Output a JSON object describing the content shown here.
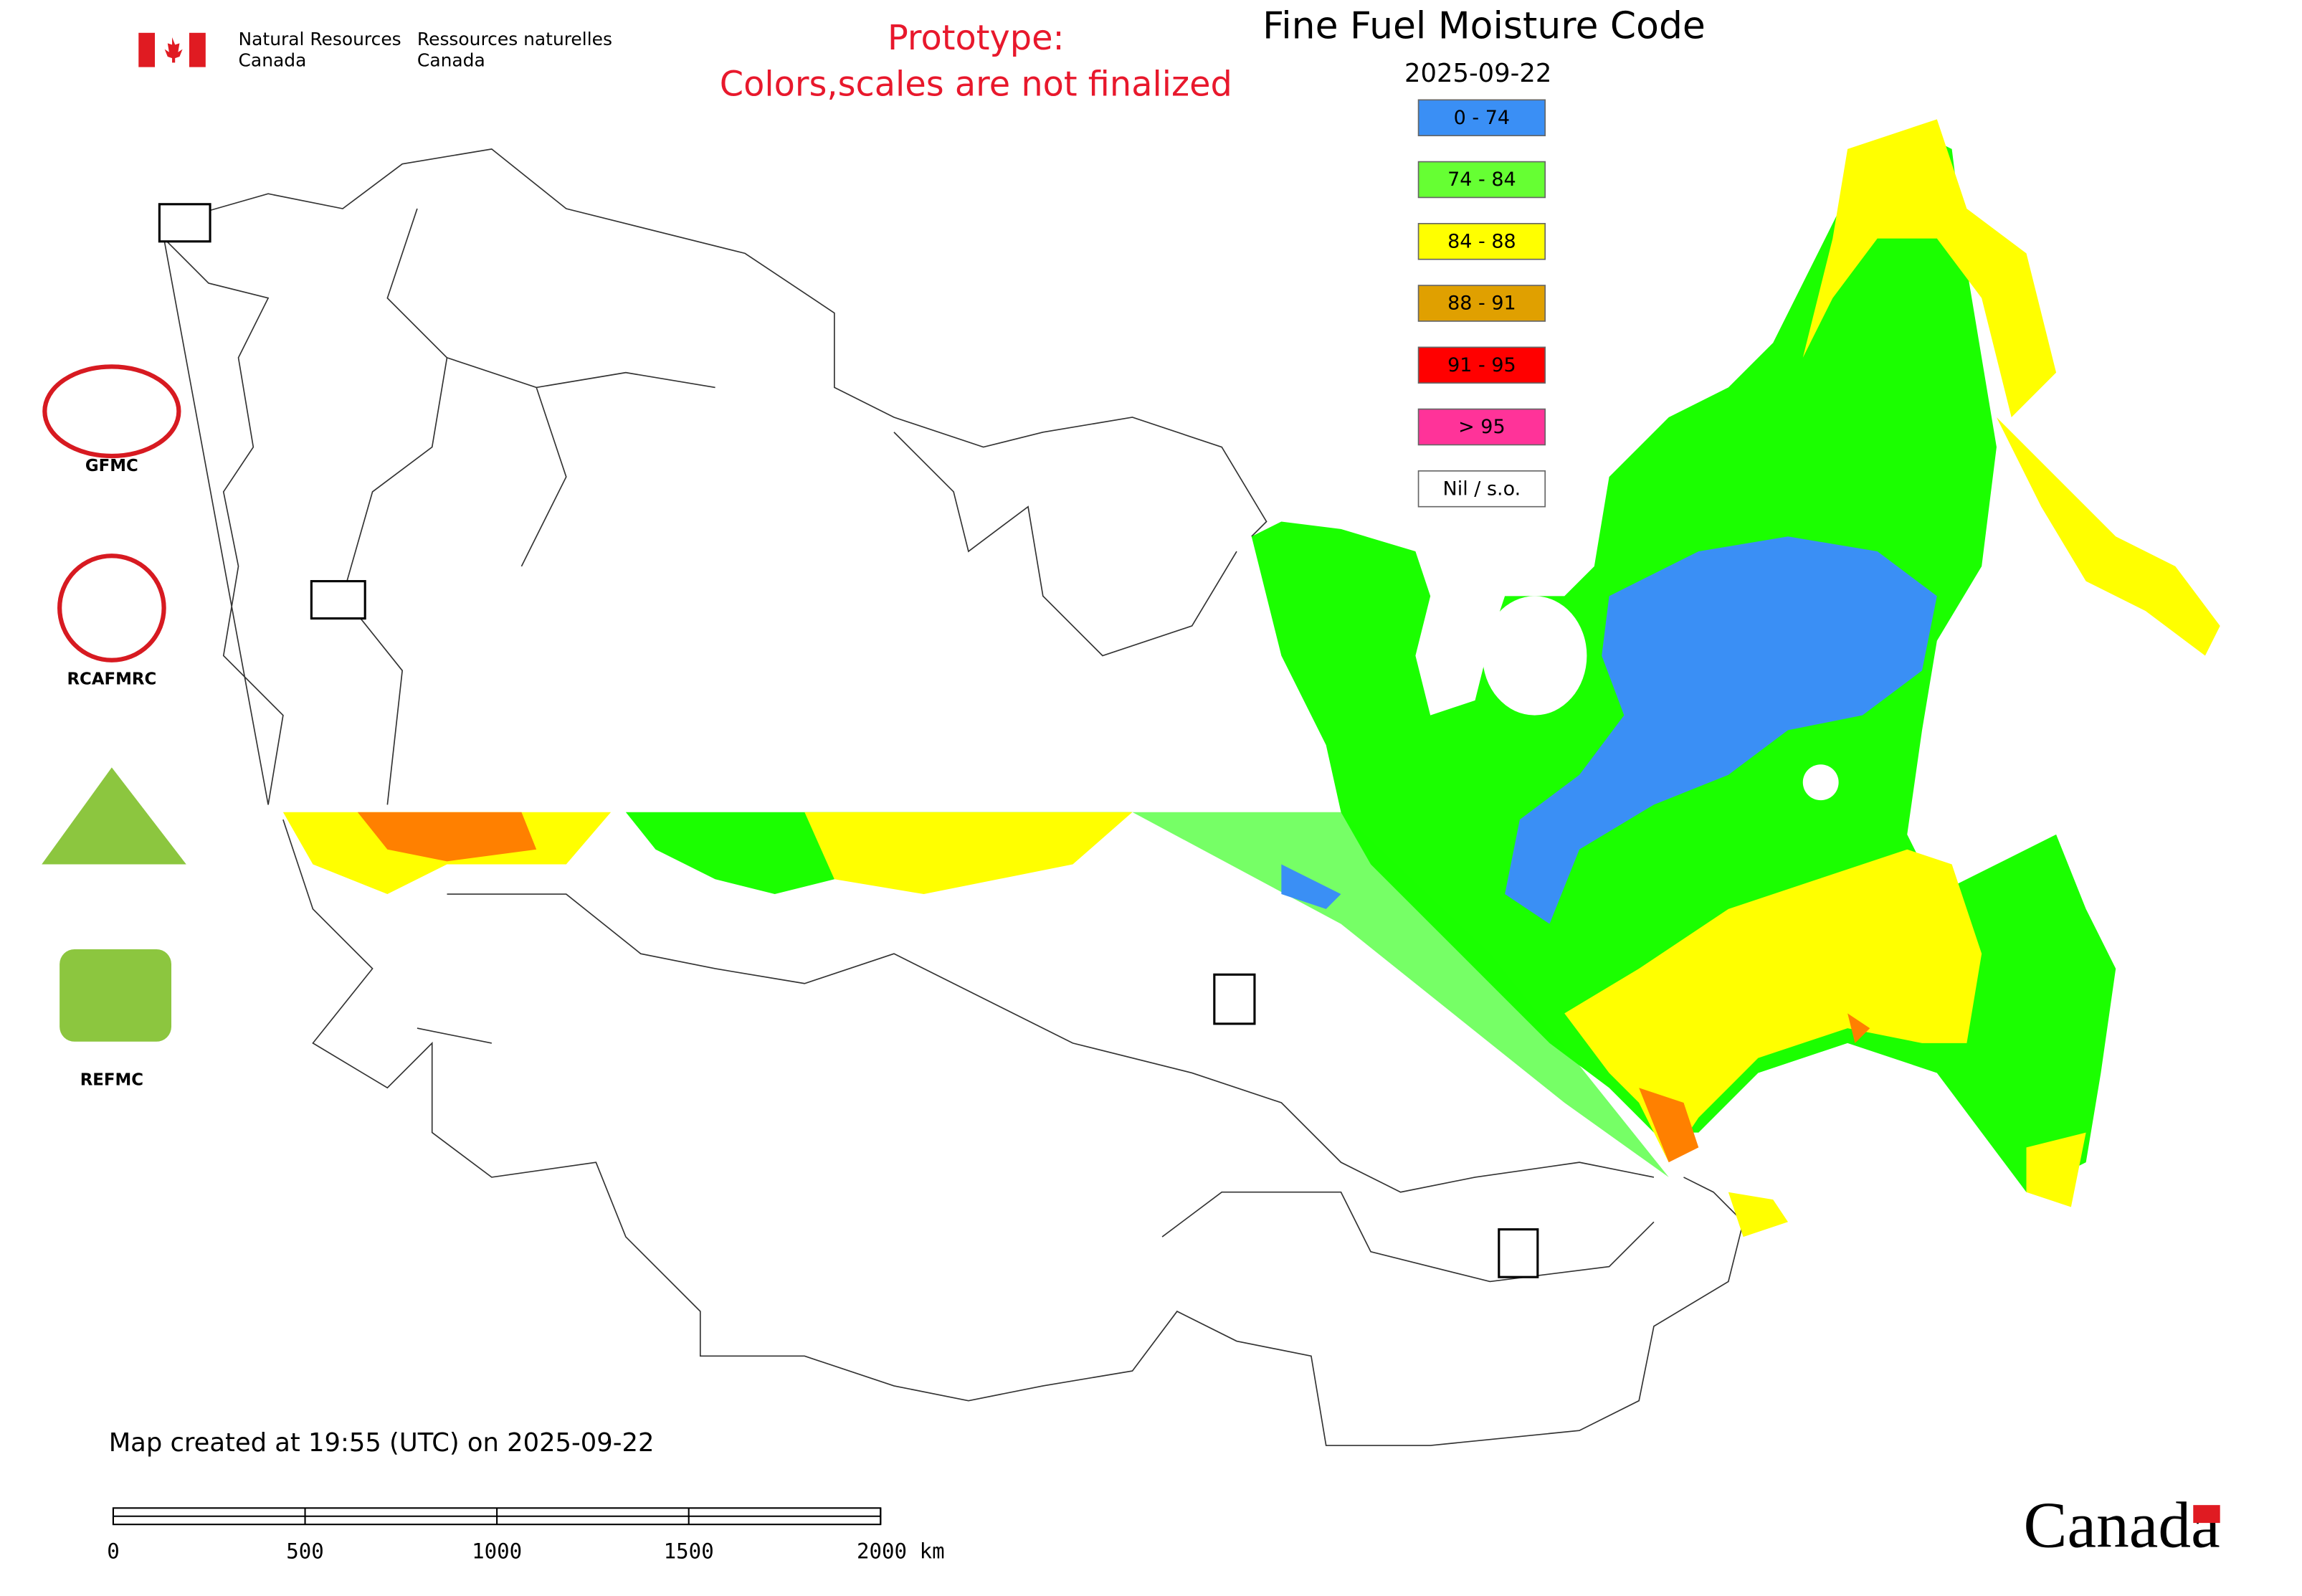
{
  "header": {
    "agency_en": [
      "Natural Resources",
      "Canada"
    ],
    "agency_fr": [
      "Ressources naturelles",
      "Canada"
    ],
    "notice": [
      "Prototype:",
      "Colors,scales are not finalized"
    ],
    "title": "Fine Fuel Moisture Code",
    "date": "2025-09-22"
  },
  "legend": {
    "items": [
      {
        "label": "0 - 74",
        "color": "#3a8ff5"
      },
      {
        "label": "74 - 84",
        "color": "#66ff33"
      },
      {
        "label": "84 - 88",
        "color": "#ffff00"
      },
      {
        "label": "88 - 91",
        "color": "#e0a000"
      },
      {
        "label": "91 - 95",
        "color": "#ff0000"
      },
      {
        "label": "> 95",
        "color": "#ff3399"
      },
      {
        "label": "Nil / s.o.",
        "color": "#ffffff"
      }
    ]
  },
  "logos": [
    "GFMC",
    "RCAFMRC",
    "REFMC"
  ],
  "footer": {
    "created": "Map created at 19:55 (UTC) on 2025-09-22",
    "wordmark": "Canada"
  },
  "scale": {
    "labels": [
      "0",
      "500",
      "1000",
      "1500",
      "2000 km"
    ]
  }
}
